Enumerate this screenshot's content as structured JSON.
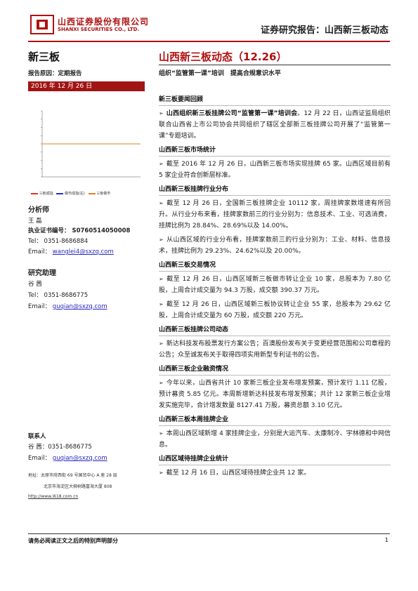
{
  "header": {
    "company_cn": "山西证券股份有限公司",
    "company_en": "SHANXI SECURITIES CO., LTD.",
    "report_type": "证券研究报告：山西新三板动态"
  },
  "left": {
    "section": "新三板",
    "reason_label": "报告原因：定期报告",
    "date": "2016 年 12 月 26 日",
    "chart_legend": [
      "三板成指",
      "做市成指(右)",
      "三板做市"
    ],
    "analyst": {
      "heading": "分析师",
      "name": "王 磊",
      "cert": "执业证书编号： S0760514050008",
      "tel": "Tel： 0351-8686884",
      "email_label": "Email：",
      "email": "wanglei4@sxzq.com"
    },
    "assistant": {
      "heading": "研究助理",
      "name": "谷 茜",
      "tel": "Tel： 0351-8686775",
      "email_label": "Email：",
      "email": "guqian@sxzq.com"
    },
    "contact": {
      "heading": "联系人",
      "name_tel": "谷 茜：0351-8686775",
      "email_label": "Email：",
      "email": "guqian@sxzq.com",
      "addr1": "地址：太原市府西街 69 号国贸中心 A 座 28 层",
      "addr2": "北京市海淀区大柳树路富海大厦 808",
      "url": "http://www.i618.com.cn"
    }
  },
  "main": {
    "title": "山西新三板动态（12.26）",
    "subtitle": "组织“监管第一课”培训　提高合规意识水平",
    "sections": [
      {
        "heading": "新三板要闻回顾",
        "paras": [
          {
            "bold": "山西组织新三板挂牌公司“监管第一课”培训会",
            "text": "。12 月 22 日，山西证监局组织联合山西省上市公司协会共同组织了辖区全部新三板挂牌公司开展了“监管第一课”专题培训。"
          }
        ]
      },
      {
        "heading": "山西新三板市场统计",
        "paras": [
          {
            "bold": "",
            "text": "截至 2016 年 12 月 26 日，山西新三板市场实现挂牌 65 家。山西区域目前有 5 家企业符合创新层标准。"
          }
        ]
      },
      {
        "heading": "山西新三板挂牌行业分布",
        "paras": [
          {
            "bold": "",
            "text": "截至 12 月 26 日，全国新三板挂牌企业 10112 家，周挂牌家数增速有所回升。从行业分布来看，挂牌家数前三的行业分别为：信息技术、工业、可选消费，挂牌比例为 28.84%、28.69%以及 14.00%。"
          },
          {
            "bold": "",
            "text": "从山西区域的行业分布看，挂牌家数前三的行业分别为：工业、材料、信息技术，挂牌比例为 29.23%、24.62%以及 20.00%。"
          }
        ]
      },
      {
        "heading": "山西新三板交易情况",
        "paras": [
          {
            "bold": "",
            "text": "截至 12 月 26 日，山西区域新三板做市转让企业 10 家，总股本为 7.80 亿股，上周合计成交量为 94.3 万股，成交额 390.37 万元。"
          },
          {
            "bold": "",
            "text": "截至 12 月 26 日，山西区域新三板协议转让企业 55 家，总股本为 29.62 亿股，上周合计成交量为 60 万股，成交额 220 万元。"
          }
        ]
      },
      {
        "heading": "山西新三板挂牌公司动态",
        "paras": [
          {
            "bold": "",
            "text": "新达科技发布股票发行方案公告；百澳股份发布关于变更经营范围和公司章程的公告；众至诚发布关于取得四项实用新型专利证书的公告。"
          }
        ]
      },
      {
        "heading": "山西新三板企业融资情况",
        "paras": [
          {
            "bold": "",
            "text": "今年以来，山西省共计 10 家新三板企业发布增发预案，预计发行 1.11 亿股，预计募资 5.85 亿元。本周新增新达科技发布增发预案；共计 12 家新三板企业增发实施完毕，合计增发数量 8127.41 万股，募资总额 3.10 亿元。"
          }
        ]
      },
      {
        "heading": "山西新三板本周挂牌企业",
        "paras": [
          {
            "bold": "",
            "text": "本周山西区域新增 4 家挂牌企业，分别是大运汽车、太康制冷、宇林德和中网信息。"
          }
        ]
      },
      {
        "heading": "山西区域待挂牌企业统计",
        "paras": [
          {
            "bold": "",
            "text": "截至 12 月 16 日，山西区域待挂牌企业共 12 家。"
          }
        ]
      }
    ]
  },
  "footer": {
    "disclaimer": "请务必阅读正文之后的特别声明部分",
    "page": "1"
  },
  "colors": {
    "brand_red": "#b01010",
    "datebar": "#a01414",
    "series": [
      "#e03020",
      "#2030c0",
      "#e08020"
    ]
  },
  "chart_data": {
    "type": "line",
    "series": [
      {
        "name": "三板成指",
        "values": [
          1,
          1,
          1,
          1,
          1,
          1,
          1,
          1,
          1,
          1,
          1,
          1,
          1,
          1,
          1,
          1,
          1,
          1,
          1,
          1
        ]
      },
      {
        "name": "做市成指(右)",
        "values": [
          1,
          1,
          1,
          1,
          1,
          1,
          1,
          1,
          1,
          1,
          1,
          1,
          1,
          1,
          1,
          1,
          1,
          1,
          1,
          1
        ]
      },
      {
        "name": "三板做市",
        "values": [
          1,
          1,
          1,
          1,
          1,
          1,
          1,
          1,
          1,
          1,
          1,
          1,
          1,
          1,
          1,
          1,
          1,
          1,
          1,
          1
        ]
      }
    ]
  }
}
